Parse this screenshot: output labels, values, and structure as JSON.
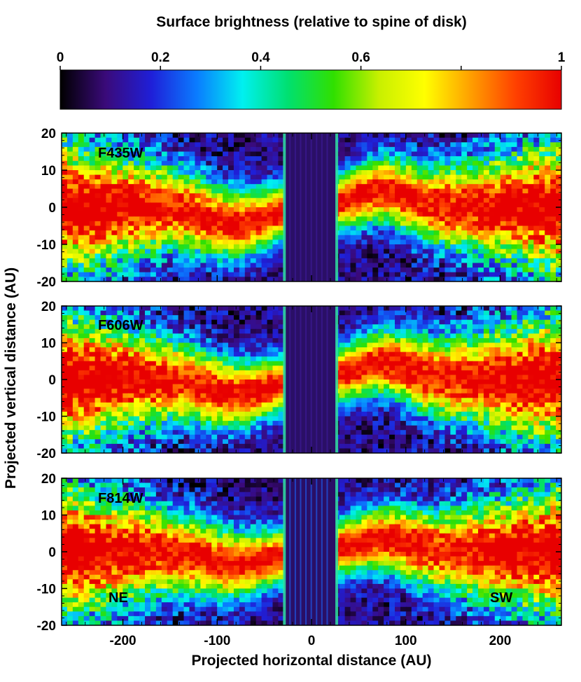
{
  "chart_data": {
    "type": "heatmap",
    "colorbar": {
      "title": "Surface brightness (relative to spine of disk)",
      "range": [
        0,
        1
      ],
      "ticks": [
        {
          "value": 0,
          "label": "0"
        },
        {
          "value": 0.2,
          "label": "0.2"
        },
        {
          "value": 0.4,
          "label": "0.4"
        },
        {
          "value": 0.6,
          "label": "0.6"
        },
        {
          "value": 0.8,
          "label": ""
        },
        {
          "value": 1,
          "label": "1"
        }
      ],
      "colors": [
        "#000000",
        "#3a0a7a",
        "#1f1fd8",
        "#0a7cff",
        "#00f0f0",
        "#00e070",
        "#30e000",
        "#c8f000",
        "#ffff00",
        "#ffa000",
        "#ff4000",
        "#e80000"
      ]
    },
    "xlabel": "Projected horizontal distance (AU)",
    "ylabel": "Projected vertical distance (AU)",
    "xlim": [
      -265,
      265
    ],
    "ylim": [
      -20,
      20
    ],
    "xticks": [
      {
        "value": -200,
        "label": "-200"
      },
      {
        "value": -100,
        "label": "-100"
      },
      {
        "value": 0,
        "label": "0"
      },
      {
        "value": 100,
        "label": "100"
      },
      {
        "value": 200,
        "label": "200"
      }
    ],
    "yticks": [
      {
        "value": 20,
        "label": "20"
      },
      {
        "value": 10,
        "label": "10"
      },
      {
        "value": 0,
        "label": "0"
      },
      {
        "value": -10,
        "label": "-10"
      },
      {
        "value": -20,
        "label": "-20"
      }
    ],
    "panels": [
      {
        "label": "F435W",
        "mask_x": [
          -28,
          26
        ],
        "warp_ne": -4.5,
        "warp_sw": 4.5
      },
      {
        "label": "F606W",
        "mask_x": [
          -28,
          26
        ],
        "warp_ne": -4.0,
        "warp_sw": 4.5
      },
      {
        "label": "F814W",
        "mask_x": [
          -28,
          26
        ],
        "warp_ne": -3.5,
        "warp_sw": 3.5
      }
    ],
    "annotations": {
      "ne": "NE",
      "sw": "SW"
    }
  }
}
